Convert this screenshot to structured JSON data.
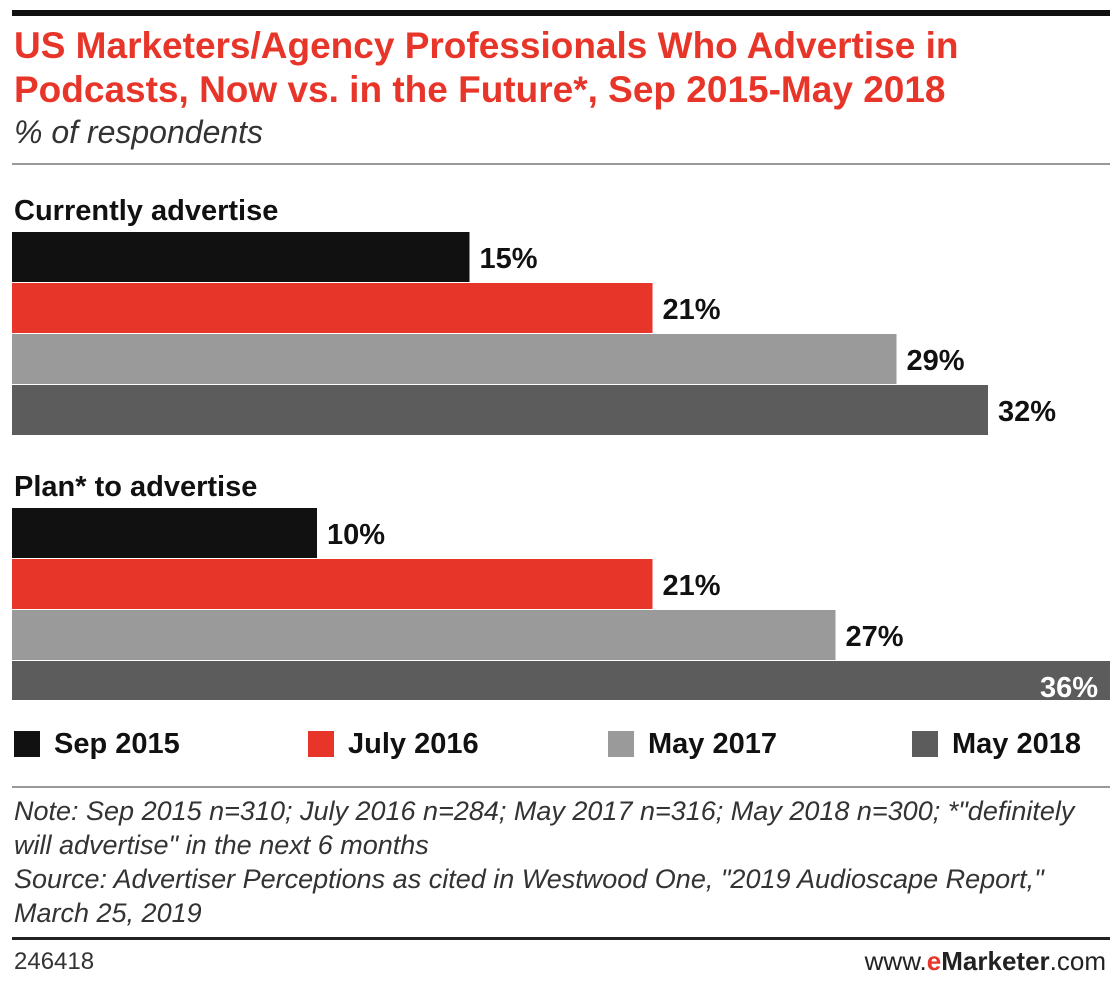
{
  "chart_data": {
    "type": "bar",
    "orientation": "horizontal",
    "title": "US Marketers/Agency Professionals Who Advertise in Podcasts, Now vs. in the Future*, Sep 2015-May 2018",
    "subtitle": "% of respondents",
    "groups": [
      "Currently advertise",
      "Plan* to advertise"
    ],
    "series": [
      {
        "name": "Sep 2015",
        "color": "#111111",
        "values": [
          15,
          10
        ],
        "labels": [
          "15%",
          "10%"
        ]
      },
      {
        "name": "July 2016",
        "color": "#e8352a",
        "values": [
          21,
          21
        ],
        "labels": [
          "21%",
          "21%"
        ]
      },
      {
        "name": "May 2017",
        "color": "#9a9a9a",
        "values": [
          29,
          27
        ],
        "labels": [
          "29%",
          "27%"
        ]
      },
      {
        "name": "May 2018",
        "color": "#5c5c5c",
        "values": [
          32,
          36
        ],
        "labels": [
          "32%",
          "36%"
        ]
      }
    ],
    "xlim": [
      0,
      36
    ],
    "legend_position": "bottom",
    "grid": false
  },
  "note_lines": [
    "Note: Sep 2015 n=310; July 2016 n=284; May 2017 n=316; May 2018 n=300; *\"definitely will advertise\" in the next 6 months",
    "Source: Advertiser Perceptions as cited in Westwood One, \"2019 Audioscape Report,\" March 25, 2019"
  ],
  "footer": {
    "chart_id": "246418",
    "brand_prefix": "www.",
    "brand_e": "e",
    "brand_name": "Marketer",
    "brand_suffix": ".com"
  }
}
